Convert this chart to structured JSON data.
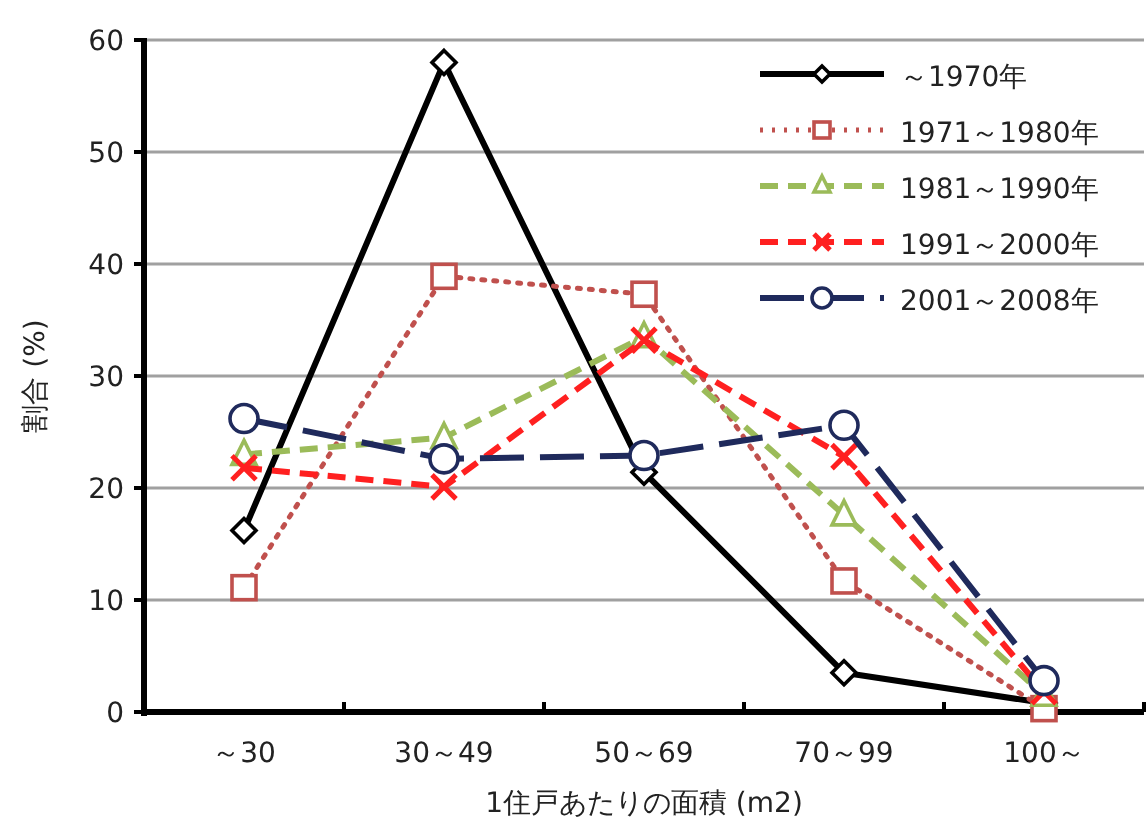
{
  "chart_data": {
    "type": "line",
    "xlabel": "1住戸あたりの面積 (m2)",
    "ylabel": "割合 (%)",
    "categories": [
      "～30",
      "30～49",
      "50～69",
      "70～99",
      "100～"
    ],
    "ylim": [
      0,
      60
    ],
    "yticks": [
      0,
      10,
      20,
      30,
      40,
      50,
      60
    ],
    "grid": "y",
    "legend": "top right",
    "series": [
      {
        "name": "～1970年",
        "color": "#000000",
        "marker": "diamond",
        "line_style": "solid",
        "values": [
          16.2,
          58,
          21.4,
          3.5,
          0.8
        ]
      },
      {
        "name": "1971～1980年",
        "color": "#c0504d",
        "marker": "square",
        "line_style": "dotted",
        "values": [
          11.1,
          38.9,
          37.3,
          11.7,
          0.3
        ]
      },
      {
        "name": "1981～1990年",
        "color": "#9bbb59",
        "marker": "triangle",
        "line_style": "dashed",
        "values": [
          23,
          24.5,
          33.5,
          17.6,
          1.5
        ]
      },
      {
        "name": "1991～2000年",
        "color": "#ff2020",
        "marker": "cross",
        "line_style": "dashed",
        "values": [
          21.8,
          20.1,
          33.2,
          22.8,
          1.8
        ]
      },
      {
        "name": "2001～2008年",
        "color": "#1f2a5c",
        "marker": "circle",
        "line_style": "longdash",
        "values": [
          26.2,
          22.6,
          22.9,
          25.6,
          2.8
        ]
      }
    ]
  }
}
